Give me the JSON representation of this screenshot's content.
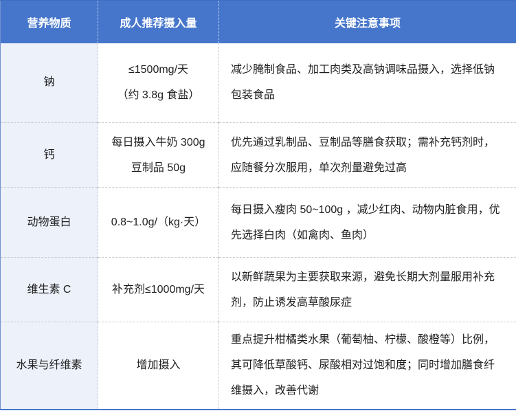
{
  "theme": {
    "header_fill": "#4676cb",
    "header_text": "#ffffff",
    "first_column_fill": "#edf1fa",
    "dashed_border": "#c5c8ce",
    "outer_border": "#4676cb",
    "body_text": "#1f1f1f"
  },
  "table": {
    "headers": [
      "营养物质",
      "成人推荐摄入量",
      "关键注意事项"
    ],
    "rows": [
      {
        "nutrient": "钠",
        "intake_lines": [
          "≤1500mg/天",
          "（约 3.8g 食盐）"
        ],
        "notes": "减少腌制食品、加工肉类及高钠调味品摄入，选择低钠包装食品"
      },
      {
        "nutrient": "钙",
        "intake_lines": [
          "每日摄入牛奶 300g",
          "豆制品 50g"
        ],
        "notes": "优先通过乳制品、豆制品等膳食获取；需补充钙剂时，应随餐分次服用，单次剂量避免过高"
      },
      {
        "nutrient": "动物蛋白",
        "intake_lines": [
          "0.8~1.0g/（kg·天）"
        ],
        "notes": "每日摄入瘦肉 50~100g ，减少红肉、动物内脏食用，优先选择白肉（如禽肉、鱼肉）"
      },
      {
        "nutrient": "维生素 C",
        "intake_lines": [
          "补充剂≤1000mg/天"
        ],
        "notes": "以新鲜蔬果为主要获取来源，避免长期大剂量服用补充剂，防止诱发高草酸尿症"
      },
      {
        "nutrient": "水果与纤维素",
        "intake_lines": [
          "增加摄入"
        ],
        "notes": "重点提升柑橘类水果（葡萄柚、柠檬、酸橙等）比例，其可降低草酸钙、尿酸相对过饱和度；同时增加膳食纤维摄入，改善代谢"
      }
    ]
  }
}
